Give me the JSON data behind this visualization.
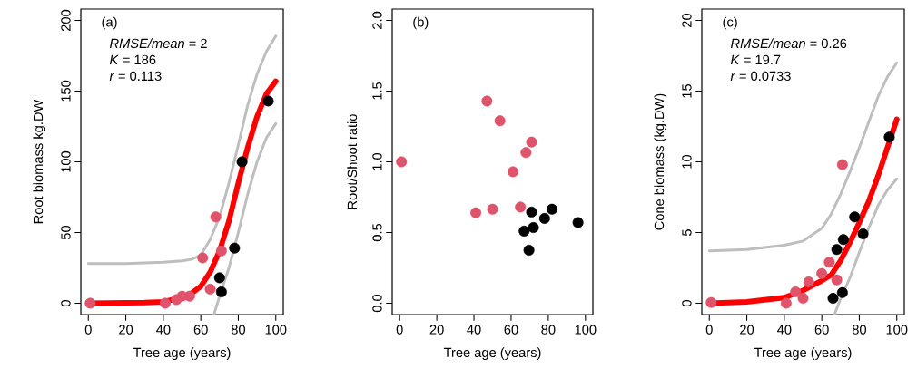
{
  "chart_data": [
    {
      "type": "scatter",
      "xlabel": "Tree age (years)",
      "ylabel": "Root biomass kg.DW",
      "xlim": [
        -4,
        104
      ],
      "ylim": [
        -8,
        208
      ],
      "xticks": [
        0,
        20,
        40,
        60,
        80,
        100
      ],
      "yticks": [
        0,
        50,
        100,
        150,
        200
      ],
      "grid": false,
      "annotations": [
        "(a)",
        "*RMSE/mean* = 2",
        "*K* = 186",
        "*r* = 0.113"
      ],
      "series": [
        {
          "type": "line",
          "color": "#bebebe",
          "x": [
            0,
            20,
            40,
            50,
            55,
            60,
            65,
            70,
            75,
            80,
            85,
            90,
            95,
            100
          ],
          "values": [
            28,
            28,
            29,
            30,
            31,
            34,
            45,
            61,
            85,
            112,
            140,
            162,
            178,
            189
          ]
        },
        {
          "type": "line",
          "color": "#bebebe",
          "x": [
            67,
            70,
            75,
            80,
            85,
            90,
            95,
            100
          ],
          "values": [
            -8,
            5,
            25,
            50,
            77,
            100,
            117,
            127
          ]
        },
        {
          "marker": "circle",
          "color": "#df536b",
          "x": [
            1,
            41,
            47,
            50,
            54,
            61,
            65,
            68,
            71
          ],
          "values": [
            0,
            0,
            2.5,
            5,
            5,
            32,
            10,
            61,
            37
          ]
        },
        {
          "marker": "circle",
          "color": "#000000",
          "x": [
            70,
            71,
            78,
            82,
            96
          ],
          "values": [
            18,
            8,
            39,
            100,
            143
          ]
        },
        {
          "type": "line",
          "color": "#ff0000",
          "x": [
            0,
            30,
            40,
            50,
            55,
            60,
            65,
            70,
            75,
            80,
            85,
            90,
            95,
            100
          ],
          "values": [
            0,
            0.5,
            1,
            4,
            7,
            12,
            22,
            37,
            58,
            85,
            110,
            132,
            148,
            157
          ]
        }
      ]
    },
    {
      "type": "scatter",
      "xlabel": "Tree age (years)",
      "ylabel": "Root/Shoot ratio",
      "xlim": [
        -4,
        104
      ],
      "ylim": [
        -0.08,
        2.08
      ],
      "xticks": [
        0,
        20,
        40,
        60,
        80,
        100
      ],
      "yticks": [
        {
          "value": 0,
          "label": "0.0"
        },
        {
          "value": 0.5,
          "label": "0.5"
        },
        {
          "value": 1,
          "label": "1.0"
        },
        {
          "value": 1.5,
          "label": "1.5"
        },
        {
          "value": 2,
          "label": "2.0"
        }
      ],
      "grid": false,
      "annotations": [
        "(b)"
      ],
      "series": [
        {
          "marker": "circle",
          "color": "#df536b",
          "x": [
            1,
            41,
            47,
            50,
            54,
            61,
            65,
            68,
            71
          ],
          "values": [
            1.0,
            0.64,
            1.43,
            0.665,
            1.29,
            0.93,
            0.68,
            1.065,
            1.14
          ]
        },
        {
          "marker": "circle",
          "color": "#000000",
          "x": [
            67,
            69.6,
            71,
            72,
            78,
            82,
            96
          ],
          "values": [
            0.51,
            0.375,
            0.645,
            0.535,
            0.6,
            0.665,
            0.57
          ]
        }
      ]
    },
    {
      "type": "scatter",
      "xlabel": "Tree age (years)",
      "ylabel": "Cone biomass (kg.DW)",
      "xlim": [
        -4,
        104
      ],
      "ylim": [
        -0.8,
        20.8
      ],
      "xticks": [
        0,
        20,
        40,
        60,
        80,
        100
      ],
      "yticks": [
        0,
        5,
        10,
        15,
        20
      ],
      "grid": false,
      "annotations": [
        "(c)",
        "*RMSE/mean* = 0.26",
        "*K* = 19.7",
        "*r* = 0.0733"
      ],
      "series": [
        {
          "type": "line",
          "color": "#bebebe",
          "x": [
            0,
            20,
            40,
            50,
            60,
            65,
            70,
            75,
            80,
            85,
            90,
            95,
            100
          ],
          "values": [
            3.7,
            3.8,
            4.1,
            4.4,
            5.3,
            6.3,
            7.7,
            9.3,
            11,
            12.8,
            14.6,
            16,
            17
          ]
        },
        {
          "type": "line",
          "color": "#bebebe",
          "x": [
            66.7,
            70,
            75,
            80,
            85,
            90,
            95,
            100
          ],
          "values": [
            -0.8,
            0.3,
            1.8,
            3.6,
            5.3,
            6.9,
            8,
            8.8
          ]
        },
        {
          "marker": "circle",
          "color": "#df536b",
          "x": [
            1,
            41,
            46,
            50,
            53,
            60,
            64,
            68,
            71
          ],
          "values": [
            0.05,
            0,
            0.8,
            0.35,
            1.5,
            2.1,
            2.9,
            1.65,
            9.8
          ]
        },
        {
          "marker": "circle",
          "color": "#000000",
          "x": [
            66,
            71,
            68,
            71.5,
            77.5,
            82,
            96
          ],
          "values": [
            0.35,
            0.75,
            3.8,
            4.5,
            6.1,
            4.9,
            11.75
          ]
        },
        {
          "type": "line",
          "color": "#ff0000",
          "x": [
            0,
            20,
            40,
            50,
            60,
            65,
            70,
            75,
            80,
            85,
            90,
            95,
            100
          ],
          "values": [
            0,
            0.1,
            0.4,
            0.9,
            1.6,
            2,
            3,
            4.3,
            5.7,
            7.2,
            9,
            11,
            13
          ]
        }
      ]
    }
  ]
}
